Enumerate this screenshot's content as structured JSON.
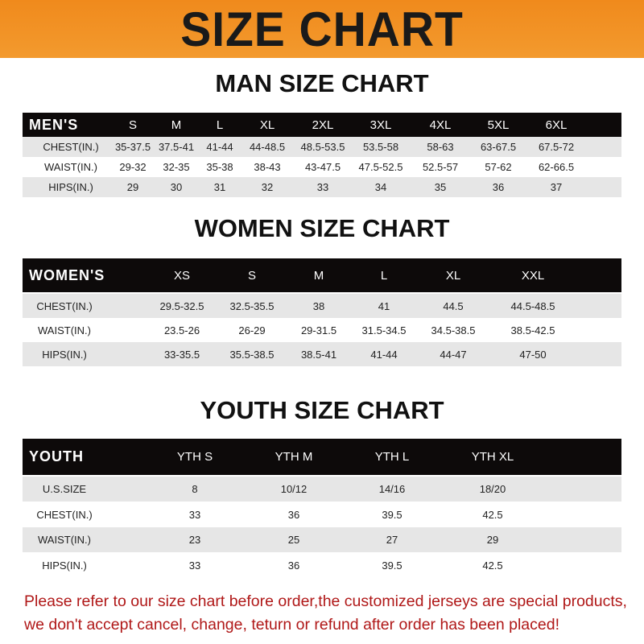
{
  "banner": "SIZE CHART",
  "tables": [
    {
      "title": "MAN SIZE CHART",
      "header": [
        "MEN'S",
        "S",
        "M",
        "L",
        "XL",
        "2XL",
        "3XL",
        "4XL",
        "5XL",
        "6XL"
      ],
      "rows": [
        [
          "CHEST(IN.)",
          "35-37.5",
          "37.5-41",
          "41-44",
          "44-48.5",
          "48.5-53.5",
          "53.5-58",
          "58-63",
          "63-67.5",
          "67.5-72"
        ],
        [
          "WAIST(IN.)",
          "29-32",
          "32-35",
          "35-38",
          "38-43",
          "43-47.5",
          "47.5-52.5",
          "52.5-57",
          "57-62",
          "62-66.5"
        ],
        [
          "HIPS(IN.)",
          "29",
          "30",
          "31",
          "32",
          "33",
          "34",
          "35",
          "36",
          "37"
        ]
      ]
    },
    {
      "title": "WOMEN SIZE CHART",
      "header": [
        "WOMEN'S",
        "XS",
        "S",
        "M",
        "L",
        "XL",
        "XXL"
      ],
      "rows": [
        [
          "CHEST(IN.)",
          "29.5-32.5",
          "32.5-35.5",
          "38",
          "41",
          "44.5",
          "44.5-48.5"
        ],
        [
          "WAIST(IN.)",
          "23.5-26",
          "26-29",
          "29-31.5",
          "31.5-34.5",
          "34.5-38.5",
          "38.5-42.5"
        ],
        [
          "HIPS(IN.)",
          "33-35.5",
          "35.5-38.5",
          "38.5-41",
          "41-44",
          "44-47",
          "47-50"
        ]
      ]
    },
    {
      "title": "YOUTH SIZE CHART",
      "header": [
        "YOUTH",
        "YTH S",
        "YTH M",
        "YTH L",
        "YTH XL"
      ],
      "rows": [
        [
          "U.S.SIZE",
          "8",
          "10/12",
          "14/16",
          "18/20"
        ],
        [
          "CHEST(IN.)",
          "33",
          "36",
          "39.5",
          "42.5"
        ],
        [
          "WAIST(IN.)",
          "23",
          "25",
          "27",
          "29"
        ],
        [
          "HIPS(IN.)",
          "33",
          "36",
          "39.5",
          "42.5"
        ]
      ]
    }
  ],
  "notice": [
    "Please refer to our size chart before order,the customized jerseys are special products,",
    "we don't accept cancel, change, teturn or refund after order has been placed!"
  ],
  "colors": {
    "banner": "#f08a1c",
    "header_row": "#0d0a0a",
    "stripe": "#e6e6e6",
    "notice": "#b01818"
  }
}
